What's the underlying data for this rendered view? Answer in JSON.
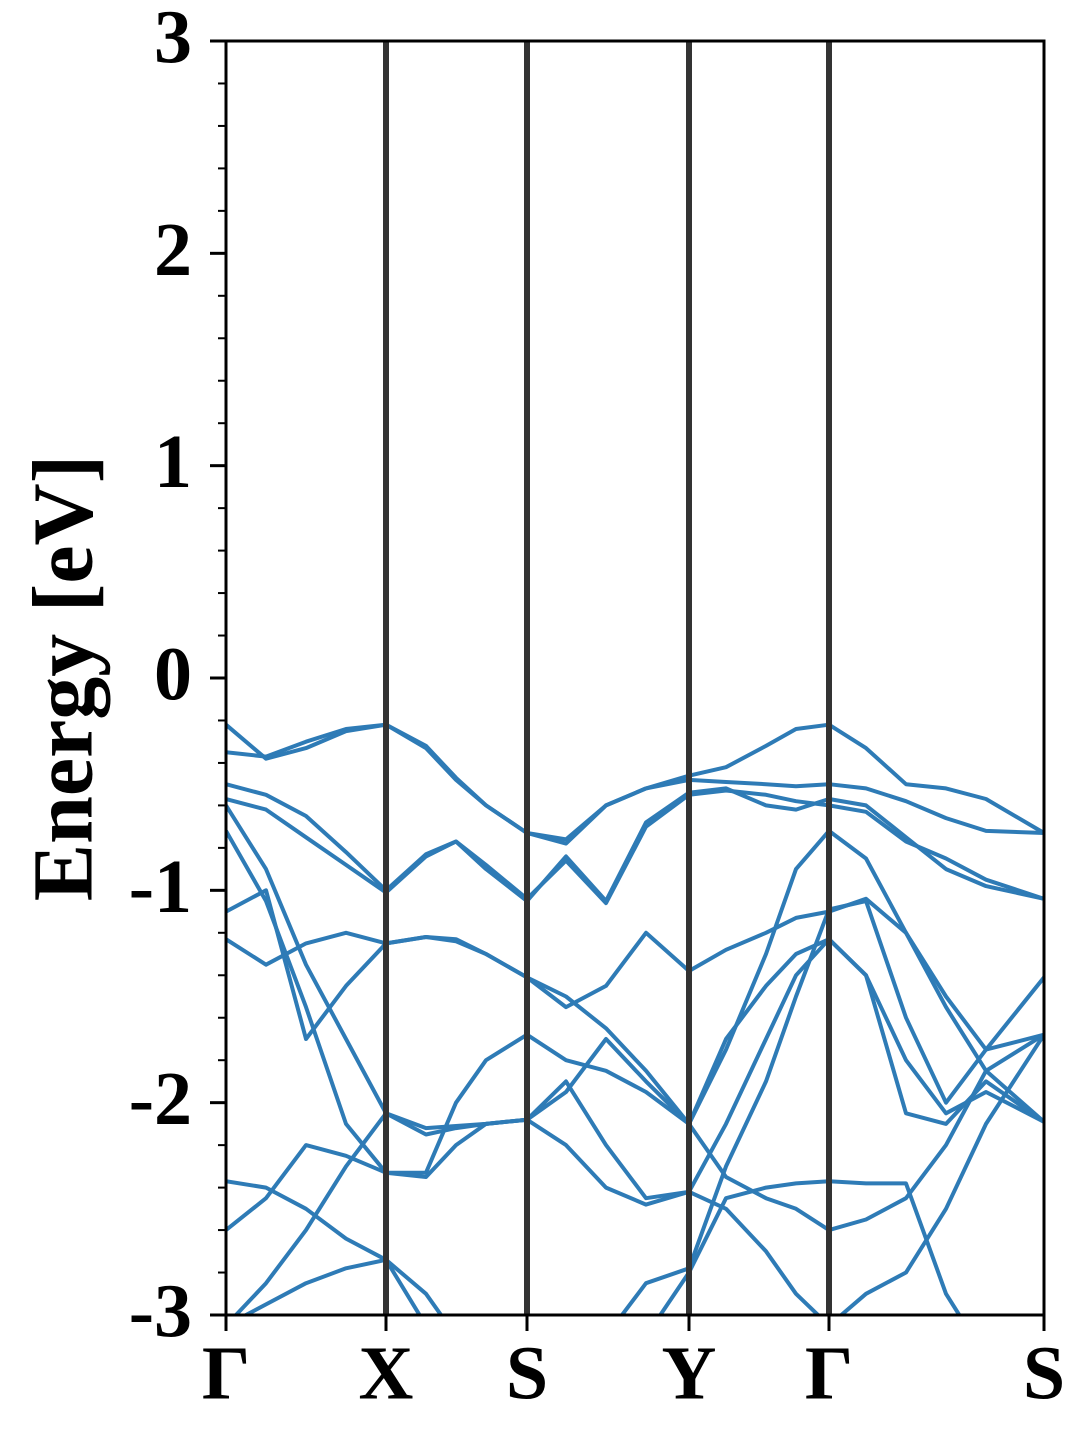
{
  "chart_data": {
    "type": "line",
    "ylabel": "Energy [eV]",
    "xlim": [
      0,
      8.18
    ],
    "xticks": [
      {
        "value": 0,
        "label": "Γ"
      },
      {
        "value": 1.6,
        "label": "X"
      },
      {
        "value": 3.01,
        "label": "S"
      },
      {
        "value": 4.63,
        "label": "Y"
      },
      {
        "value": 6.03,
        "label": "Γ"
      },
      {
        "value": 8.18,
        "label": "S"
      }
    ],
    "ylim": [
      -3,
      3
    ],
    "yticks": [
      -3,
      -2,
      -1,
      0,
      1,
      2,
      3
    ],
    "yminorticks": [
      -2.8,
      -2.6,
      -2.4,
      -2.2,
      -1.8,
      -1.6,
      -1.4,
      -1.2,
      -0.8,
      -0.6,
      -0.4,
      -0.2,
      0.2,
      0.4,
      0.6,
      0.8,
      1.2,
      1.4,
      1.6,
      1.8,
      2.2,
      2.4,
      2.6,
      2.8
    ],
    "color": "#2e7bb6",
    "x": [
      0,
      0.4,
      0.8,
      1.2,
      1.6,
      2.0,
      2.3,
      2.6,
      3.01,
      3.4,
      3.8,
      4.2,
      4.63,
      5.0,
      5.4,
      5.7,
      6.03,
      6.4,
      6.8,
      7.2,
      7.6,
      8.18
    ],
    "series": [
      {
        "values": [
          -0.22,
          -0.38,
          -0.33,
          -0.25,
          -0.22,
          -0.33,
          -0.48,
          -0.6,
          -0.73,
          -0.76,
          -0.6,
          -0.52,
          -0.46,
          -0.42,
          -0.32,
          -0.24,
          -0.22,
          -0.33,
          -0.5,
          -0.52,
          -0.57,
          -0.73
        ]
      },
      {
        "values": [
          -0.35,
          -0.37,
          -0.3,
          -0.24,
          -0.22,
          -0.32,
          -0.47,
          -0.6,
          -0.73,
          -0.78,
          -0.6,
          -0.52,
          -0.48,
          -0.49,
          -0.5,
          -0.51,
          -0.5,
          -0.52,
          -0.58,
          -0.66,
          -0.72,
          -0.73
        ]
      },
      {
        "values": [
          -0.5,
          -0.55,
          -0.65,
          -0.82,
          -1.0,
          -0.83,
          -0.77,
          -0.88,
          -1.04,
          -0.86,
          -1.06,
          -0.7,
          -0.55,
          -0.53,
          -0.55,
          -0.58,
          -0.6,
          -0.63,
          -0.77,
          -0.85,
          -0.95,
          -1.04
        ]
      },
      {
        "values": [
          -0.57,
          -0.62,
          -0.75,
          -0.88,
          -1.01,
          -0.84,
          -0.77,
          -0.9,
          -1.05,
          -0.84,
          -1.05,
          -0.68,
          -0.54,
          -0.52,
          -0.6,
          -0.62,
          -0.57,
          -0.6,
          -0.75,
          -0.9,
          -0.98,
          -1.04
        ]
      },
      {
        "values": [
          -0.6,
          -0.9,
          -1.35,
          -1.7,
          -2.05,
          -2.12,
          -2.11,
          -2.1,
          -2.08,
          -1.95,
          -1.7,
          -1.9,
          -2.1,
          -1.75,
          -1.3,
          -0.9,
          -0.72,
          -0.85,
          -1.2,
          -1.55,
          -1.85,
          -2.09
        ]
      },
      {
        "values": [
          -0.72,
          -1.05,
          -1.55,
          -2.1,
          -2.33,
          -2.33,
          -2.0,
          -1.8,
          -1.68,
          -1.8,
          -1.85,
          -1.95,
          -2.1,
          -2.35,
          -2.45,
          -2.5,
          -2.6,
          -2.55,
          -2.45,
          -2.2,
          -1.85,
          -1.68
        ]
      },
      {
        "values": [
          -1.1,
          -1.0,
          -1.7,
          -1.45,
          -1.25,
          -1.22,
          -1.23,
          -1.3,
          -1.41,
          -1.55,
          -1.45,
          -1.2,
          -1.38,
          -1.28,
          -1.2,
          -1.13,
          -1.1,
          -1.04,
          -1.2,
          -1.5,
          -1.75,
          -1.41
        ]
      },
      {
        "values": [
          -1.23,
          -1.35,
          -1.25,
          -1.2,
          -1.25,
          -1.22,
          -1.24,
          -1.3,
          -1.41,
          -1.5,
          -1.65,
          -1.85,
          -2.1,
          -1.7,
          -1.45,
          -1.3,
          -1.23,
          -1.4,
          -1.8,
          -2.05,
          -1.95,
          -2.09
        ]
      },
      {
        "values": [
          -2.37,
          -2.4,
          -2.5,
          -2.64,
          -2.74,
          -3.05,
          null,
          null,
          null,
          null,
          null,
          -3.1,
          -2.8,
          -2.45,
          -2.4,
          -2.38,
          -2.37,
          -2.38,
          -2.38,
          -2.9,
          -3.2,
          null
        ]
      },
      {
        "values": [
          -2.6,
          -2.45,
          -2.2,
          -2.25,
          -2.33,
          -2.35,
          -2.2,
          -2.1,
          -2.08,
          -1.9,
          -2.2,
          -2.45,
          -2.42,
          -2.5,
          -2.7,
          -2.9,
          -3.05,
          -2.9,
          -2.8,
          -2.5,
          -2.1,
          -1.68
        ]
      },
      {
        "values": [
          -3.05,
          -2.85,
          -2.6,
          -2.3,
          -2.05,
          -2.15,
          -2.12,
          -2.1,
          -2.08,
          -2.2,
          -2.4,
          -2.48,
          -2.42,
          -2.1,
          -1.7,
          -1.4,
          -1.23,
          -1.4,
          -2.05,
          -2.1,
          -1.9,
          -2.09
        ]
      },
      {
        "values": [
          -3.05,
          -2.95,
          -2.85,
          -2.78,
          -2.74,
          -2.9,
          -3.1,
          null,
          null,
          null,
          -3.1,
          -2.85,
          -2.78,
          -2.3,
          -1.9,
          -1.5,
          -1.09,
          -1.05,
          -1.6,
          -2.0,
          -1.75,
          -1.68
        ]
      }
    ]
  }
}
